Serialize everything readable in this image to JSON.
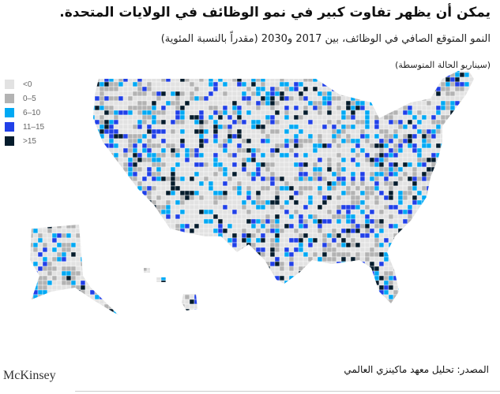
{
  "title": "يمكن أن يظهر تفاوت كبير في نمو الوظائف في الولايات المتحدة.",
  "subtitle": "النمو المتوقع الصافي في الوظائف، بين 2017 و2030 (مقدراً بالنسبة المئوية)",
  "scenario": "(سيناريو الحالة المتوسطة)",
  "legend": [
    {
      "label": "<0",
      "color": "#e2e2e2"
    },
    {
      "label": "0–5",
      "color": "#b3b3b3"
    },
    {
      "label": "6–10",
      "color": "#00a9f4"
    },
    {
      "label": "11–15",
      "color": "#2140e8"
    },
    {
      "label": ">15",
      "color": "#051c2c"
    }
  ],
  "source": "المصدر: تحليل معهد ماكينزي العالمي",
  "logo": "McKinsey"
}
